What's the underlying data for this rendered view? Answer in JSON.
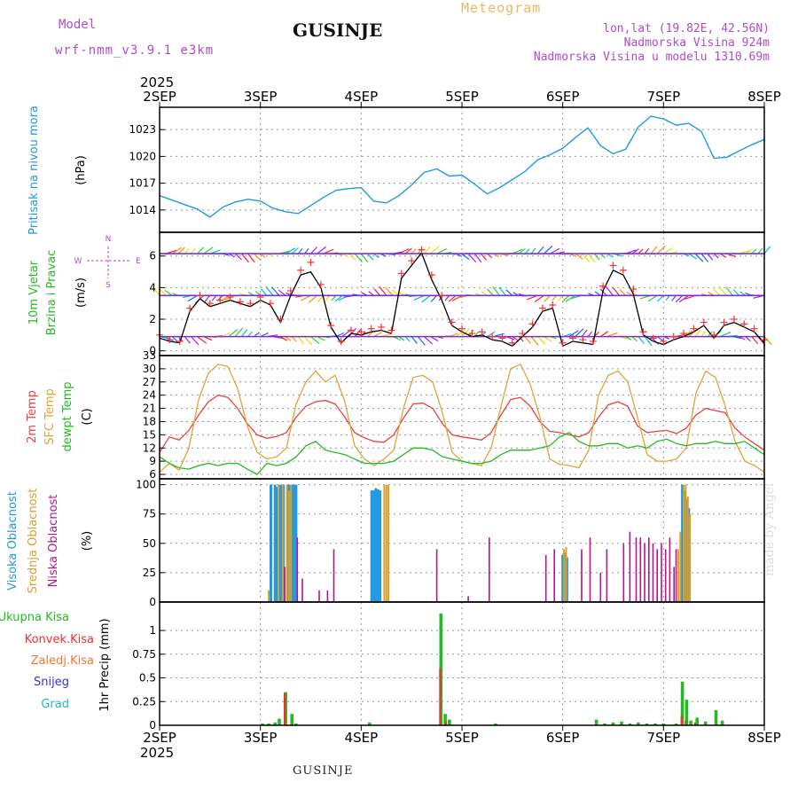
{
  "header": {
    "model_label": "Model",
    "model_name": "wrf-nmm_v3.9.1 e3km",
    "station": "GUSINJE",
    "meteogram": "Meteogram",
    "lonlat": "lon,lat (19.82E, 42.56N)",
    "elevation": "Nadmorska Visina 924m",
    "elevation_model": "Nadmorska Visina u modelu 1310.69m"
  },
  "footer": {
    "station": "GUSINJE",
    "made_by": "made by Angel"
  },
  "time_axis": {
    "year": "2025",
    "days": [
      "2SEP",
      "3SEP",
      "4SEP",
      "5SEP",
      "6SEP",
      "7SEP",
      "8SEP"
    ]
  },
  "chart_data": [
    {
      "type": "line",
      "panel": "pressure",
      "ylabel_main": "Pritisak na nivou mora",
      "ylabel_unit": "(hPa)",
      "ylim": [
        1011.5,
        1025.5
      ],
      "yticks": [
        1014,
        1017,
        1020,
        1023
      ],
      "color": "#1e9be8",
      "x_hours": [
        0,
        3,
        6,
        9,
        12,
        15,
        18,
        21,
        24,
        27,
        30,
        33,
        36,
        39,
        42,
        45,
        48,
        51,
        54,
        57,
        60,
        63,
        66,
        69,
        72,
        75,
        78,
        81,
        84,
        87,
        90,
        93,
        96,
        99,
        102,
        105,
        108,
        111,
        114,
        117,
        120,
        123,
        126,
        129,
        132,
        135,
        138,
        141,
        144
      ],
      "values": [
        1015.6,
        1015.1,
        1014.6,
        1014.1,
        1013.2,
        1014.3,
        1014.9,
        1015.2,
        1015.0,
        1014.2,
        1013.8,
        1013.6,
        1014.5,
        1015.4,
        1016.2,
        1016.4,
        1016.5,
        1015.0,
        1014.8,
        1015.6,
        1016.8,
        1018.2,
        1018.6,
        1017.8,
        1017.9,
        1016.9,
        1015.8,
        1016.5,
        1017.4,
        1018.3,
        1019.6,
        1020.2,
        1020.9,
        1022.1,
        1023.2,
        1021.2,
        1020.3,
        1020.8,
        1023.3,
        1024.5,
        1024.2,
        1023.5,
        1023.7,
        1022.8,
        1019.8,
        1019.9,
        1020.6,
        1021.3,
        1021.9
      ]
    },
    {
      "type": "line",
      "panel": "wind",
      "ylabel_main": "10m Vjetar",
      "ylabel_sub": "Brzina i Pravac",
      "ylabel_unit": "(m/s)",
      "compass": {
        "w": "W",
        "e": "E",
        "n": "N",
        "s": "S"
      },
      "ylim": [
        -0.3,
        7.5
      ],
      "yticks": [
        0,
        2,
        4,
        6
      ],
      "series": [
        {
          "style": "black-line",
          "color": "#000000",
          "values": [
            0.8,
            0.6,
            0.5,
            2.5,
            3.3,
            2.8,
            3.0,
            3.2,
            3.0,
            2.8,
            3.2,
            2.9,
            1.8,
            3.5,
            4.8,
            5.0,
            4.0,
            1.5,
            0.5,
            1.1,
            1.0,
            1.2,
            1.3,
            1.1,
            4.6,
            5.4,
            6.2,
            4.5,
            3.2,
            1.6,
            1.2,
            0.9,
            1.0,
            0.7,
            0.6,
            0.3,
            0.9,
            1.5,
            2.5,
            2.7,
            0.3,
            0.6,
            0.5,
            0.4,
            3.8,
            5.1,
            4.8,
            3.6,
            1.0,
            0.6,
            0.4,
            0.7,
            0.9,
            1.2,
            1.6,
            0.8,
            1.6,
            1.8,
            1.5,
            1.2,
            0.5
          ]
        },
        {
          "style": "red-plus",
          "color": "#ff3030",
          "values": [
            1.0,
            0.7,
            0.6,
            2.7,
            3.5,
            3.0,
            3.2,
            3.4,
            3.1,
            3.0,
            3.4,
            3.0,
            2.0,
            3.8,
            5.1,
            5.6,
            4.2,
            1.6,
            0.6,
            1.3,
            1.2,
            1.4,
            1.5,
            1.3,
            4.9,
            5.7,
            6.4,
            4.8,
            3.5,
            1.8,
            1.4,
            1.1,
            1.2,
            0.9,
            0.8,
            0.5,
            1.1,
            1.7,
            2.7,
            2.9,
            0.5,
            0.8,
            0.7,
            0.6,
            4.1,
            5.4,
            5.1,
            3.9,
            1.2,
            0.8,
            0.6,
            0.9,
            1.1,
            1.4,
            1.8,
            1.0,
            1.8,
            2.0,
            1.7,
            1.4,
            0.7
          ]
        }
      ]
    },
    {
      "type": "line",
      "panel": "temperature",
      "ylabel_lines": [
        "2m Temp",
        "SFC Temp",
        "dewpt Temp"
      ],
      "ylabel_unit": "(C)",
      "ylim": [
        5,
        33
      ],
      "yticks": [
        6,
        9,
        12,
        15,
        18,
        21,
        24,
        27,
        30,
        33
      ],
      "series": [
        {
          "name": "2m Temp",
          "color": "#ee4040",
          "values": [
            11.0,
            14.5,
            13.8,
            16.0,
            19.5,
            22.5,
            24.0,
            23.5,
            21.0,
            17.5,
            15.0,
            14.2,
            14.6,
            15.5,
            19.0,
            21.5,
            22.5,
            22.8,
            22.0,
            19.0,
            15.5,
            14.3,
            13.5,
            13.3,
            15.0,
            18.8,
            22.0,
            22.2,
            21.0,
            17.5,
            15.0,
            14.5,
            14.2,
            13.8,
            15.5,
            19.5,
            23.0,
            23.5,
            21.5,
            18.0,
            15.8,
            15.5,
            15.0,
            14.5,
            15.5,
            19.0,
            21.8,
            22.5,
            21.5,
            17.0,
            15.5,
            15.8,
            16.0,
            15.3,
            16.5,
            19.5,
            21.0,
            20.5,
            20.0,
            16.5,
            14.5,
            13.0,
            11.5
          ]
        },
        {
          "name": "SFC Temp",
          "color": "#dda53a",
          "values": [
            6.5,
            8.5,
            7.0,
            12.0,
            23.0,
            29.0,
            31.0,
            30.5,
            25.5,
            17.0,
            11.0,
            9.5,
            10.0,
            12.0,
            22.0,
            27.0,
            29.5,
            27.0,
            28.5,
            22.5,
            12.5,
            9.5,
            8.0,
            9.5,
            11.5,
            21.0,
            28.0,
            28.5,
            27.0,
            20.0,
            11.0,
            9.0,
            8.5,
            8.0,
            12.0,
            21.5,
            30.0,
            31.0,
            26.5,
            19.0,
            9.5,
            8.3,
            8.0,
            7.5,
            11.5,
            24.0,
            28.5,
            29.5,
            27.0,
            19.0,
            10.5,
            9.0,
            9.0,
            9.5,
            12.0,
            24.5,
            29.5,
            28.0,
            21.5,
            13.5,
            9.0,
            8.0,
            6.5
          ]
        },
        {
          "name": "dewpt Temp",
          "color": "#22bb22",
          "values": [
            10.0,
            8.5,
            7.5,
            7.2,
            8.0,
            8.5,
            8.0,
            8.5,
            8.5,
            7.2,
            6.0,
            8.5,
            8.0,
            8.5,
            10.0,
            12.5,
            13.5,
            11.5,
            11.0,
            10.5,
            9.5,
            8.5,
            8.5,
            8.5,
            9.0,
            10.5,
            12.0,
            12.0,
            11.5,
            10.0,
            9.5,
            9.0,
            8.5,
            8.5,
            9.0,
            10.5,
            11.5,
            11.5,
            11.5,
            12.0,
            12.5,
            14.5,
            15.5,
            13.5,
            12.5,
            12.5,
            13.0,
            13.0,
            12.0,
            12.5,
            12.0,
            13.5,
            14.0,
            13.0,
            12.5,
            13.0,
            13.0,
            13.5,
            13.0,
            13.0,
            13.5,
            12.0,
            10.5
          ]
        }
      ]
    },
    {
      "type": "bar",
      "panel": "clouds",
      "ylabel_lines": [
        "Visoka Oblacnost",
        "Srednja Oblacnost",
        "Niska Oblacnost"
      ],
      "ylabel_unit": "(%)",
      "ylim": [
        0,
        105
      ],
      "yticks": [
        0,
        25,
        50,
        75,
        100
      ],
      "series": [
        {
          "name": "Visoka Oblacnost",
          "color": "#2299e0",
          "x_hours": [
            26.5,
            27.5,
            28.0,
            28.5,
            29.0,
            29.5,
            30.5,
            31.0,
            31.5,
            32.0,
            32.5,
            50.5,
            51.0,
            51.5,
            52.0,
            52.5,
            96.0,
            96.5,
            97.0,
            124.5,
            125.0,
            125.5,
            126.0
          ],
          "values": [
            100,
            100,
            98,
            100,
            100,
            100,
            100,
            100,
            100,
            100,
            100,
            95,
            95,
            97,
            96,
            95,
            40,
            42,
            38,
            100,
            95,
            88,
            80
          ]
        },
        {
          "name": "Srednja Oblacnost",
          "color": "#d8a030",
          "x_hours": [
            26.0,
            28.3,
            29.3,
            30.3,
            30.8,
            31.3,
            53.5,
            54.0,
            54.5,
            96.3,
            96.8,
            123.5,
            124.0,
            124.8,
            125.3,
            125.8,
            126.3
          ],
          "values": [
            10,
            100,
            100,
            100,
            95,
            100,
            100,
            100,
            100,
            45,
            47,
            45,
            60,
            100,
            100,
            90,
            75
          ]
        },
        {
          "name": "Niska Oblacnost",
          "color": "#b01890",
          "x_hours": [
            29.8,
            32.8,
            34.0,
            38.0,
            40.0,
            41.5,
            66.0,
            73.5,
            78.5,
            92.0,
            94.0,
            100.5,
            102.5,
            105.0,
            106.5,
            110.5,
            112.0,
            113.5,
            114.5,
            115.5,
            116.5,
            117.5,
            118.5,
            119.5,
            120.5,
            121.5,
            122.5,
            123.0
          ],
          "values": [
            30,
            55,
            20,
            10,
            10,
            45,
            45,
            5,
            55,
            40,
            45,
            45,
            55,
            25,
            45,
            50,
            60,
            55,
            55,
            50,
            55,
            50,
            45,
            50,
            45,
            55,
            30,
            45
          ]
        }
      ]
    },
    {
      "type": "bar",
      "panel": "precipitation",
      "ylabel_lines": [
        "Ukupna Kisa",
        "Konvek.Kisa",
        "Zaledj.Kisa",
        "Snijeg",
        "Grad"
      ],
      "ylabel_unit": "1hr Precip (mm)",
      "ylim": [
        0,
        1.3
      ],
      "yticks": [
        0,
        0.25,
        0.5,
        0.75,
        1
      ],
      "series": [
        {
          "name": "Ukupna Kisa",
          "color": "#22bb22",
          "x_hours": [
            24.5,
            26.0,
            27.5,
            28.5,
            30.0,
            31.5,
            32.5,
            50.0,
            67.0,
            68.0,
            69.0,
            80.0,
            104.0,
            106.0,
            108.0,
            110.0,
            112.0,
            114.0,
            116.0,
            118.0,
            120.0,
            123.0,
            124.5,
            125.5,
            126.5,
            128.0,
            130.0,
            132.5,
            134.0
          ],
          "values": [
            0.02,
            0.02,
            0.03,
            0.07,
            0.35,
            0.12,
            0.02,
            0.03,
            1.18,
            0.12,
            0.06,
            0.02,
            0.06,
            0.02,
            0.03,
            0.04,
            0.02,
            0.03,
            0.02,
            0.02,
            0.02,
            0.02,
            0.46,
            0.27,
            0.05,
            0.08,
            0.04,
            0.16,
            0.05
          ]
        },
        {
          "name": "Konvek.Kisa",
          "color": "#ee3030",
          "x_hours": [
            29.8,
            66.8,
            68.2,
            124.3,
            125.3,
            127.5
          ],
          "values": [
            0.34,
            0.6,
            0.04,
            0.1,
            0.05,
            0.03
          ]
        },
        {
          "name": "Zaledj.Kisa",
          "color": "#f07830",
          "x_hours": [
            30.2
          ],
          "values": [
            0.02
          ]
        },
        {
          "name": "Snijeg",
          "color": "#3333dd",
          "x_hours": [],
          "values": []
        },
        {
          "name": "Grad",
          "color": "#22bbbb",
          "x_hours": [],
          "values": []
        }
      ]
    }
  ]
}
